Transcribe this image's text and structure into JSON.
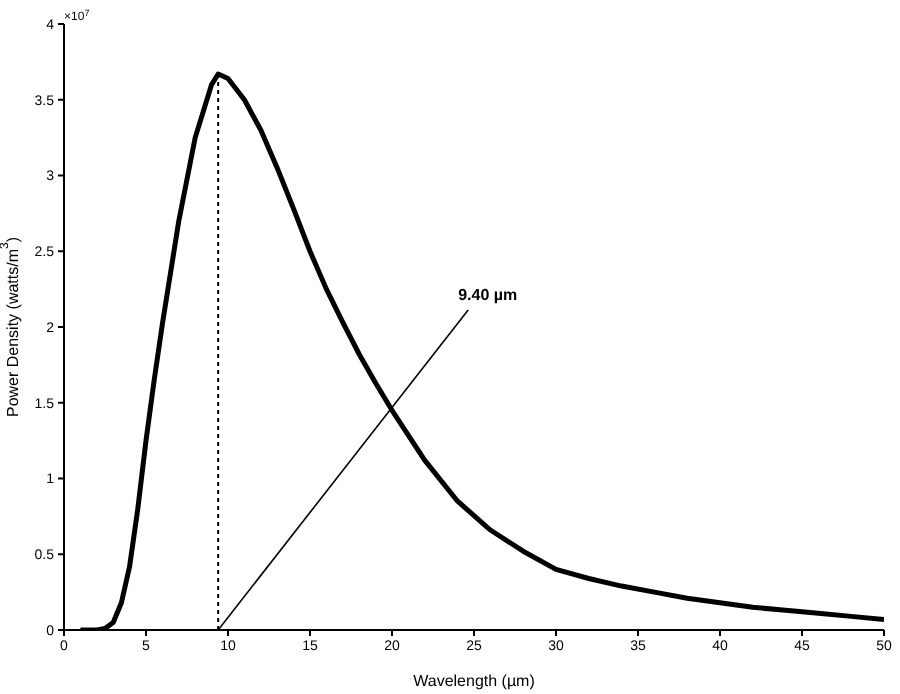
{
  "chart_data": {
    "type": "line",
    "xlabel": "Wavelength (µm)",
    "ylabel": "Power Density (watts/m$^{3}$)",
    "annotations": [
      "×10$^{7}$",
      {
        "text": "9.40 µm",
        "x": 9.4,
        "y": 0
      }
    ],
    "x": [
      1,
      2,
      2.5,
      3,
      3.5,
      4,
      4.5,
      5,
      5.5,
      6,
      7,
      8,
      9,
      9.4,
      10,
      11,
      12,
      13,
      14,
      15,
      16,
      17,
      18,
      19,
      20,
      22,
      24,
      26,
      28,
      30,
      32,
      34,
      36,
      38,
      40,
      42,
      44,
      46,
      48,
      50
    ],
    "series": [
      {
        "color": "#000000",
        "values": [
          0,
          0,
          0.01,
          0.05,
          0.18,
          0.42,
          0.8,
          1.25,
          1.65,
          2.02,
          2.7,
          3.25,
          3.6,
          3.67,
          3.64,
          3.5,
          3.3,
          3.05,
          2.78,
          2.5,
          2.25,
          2.03,
          1.82,
          1.63,
          1.45,
          1.12,
          0.85,
          0.66,
          0.52,
          0.4,
          0.34,
          0.29,
          0.25,
          0.21,
          0.18,
          0.15,
          0.13,
          0.11,
          0.09,
          0.07
        ]
      }
    ],
    "xlim": [
      0,
      50
    ],
    "xticks": [
      0,
      5,
      10,
      15,
      20,
      25,
      30,
      35,
      40,
      45,
      50
    ],
    "ylim": [
      0,
      4
    ],
    "yticks": [
      0,
      0.5,
      1,
      1.5,
      2,
      2.5,
      3,
      3.5,
      4
    ],
    "ref_lines": [
      {
        "axis": "x",
        "value": 9.4,
        "line_style": "dotted",
        "color": "#000000"
      }
    ],
    "grid": false,
    "legend": false,
    "marker": "none",
    "line_style": "solid"
  }
}
